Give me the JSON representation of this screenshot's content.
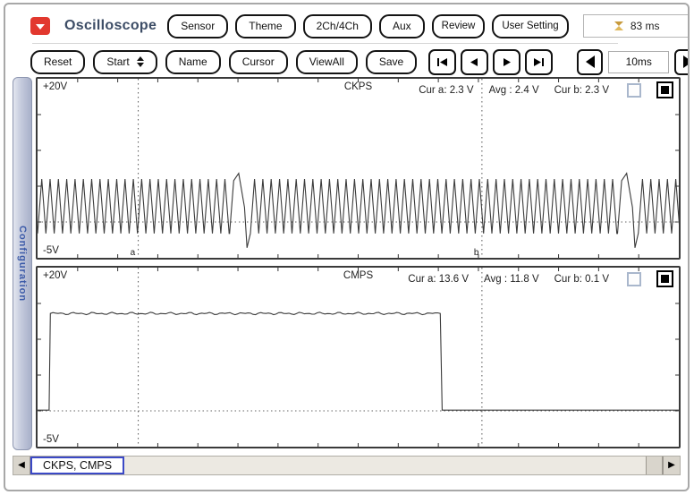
{
  "window": {
    "title": "Oscilloscope"
  },
  "toolbar_top": {
    "buttons": [
      "Sensor",
      "Theme",
      "2Ch/4Ch",
      "Aux",
      "Review",
      "User Setting"
    ],
    "timing_value": "83 ms"
  },
  "toolbar_main": {
    "reset": "Reset",
    "start": "Start",
    "name": "Name",
    "cursor": "Cursor",
    "view_all": "ViewAll",
    "save": "Save",
    "time_base": "10ms"
  },
  "sidebar": {
    "label": "Configuration"
  },
  "status_bar": {
    "channels_label": "CKPS, CMPS"
  },
  "colors": {
    "accent_red": "#e2382e",
    "sidebar_text": "#3b5aa8",
    "status_label_border": "#3b49c6",
    "timing_icon_gold": "#c79a3c",
    "waveform": "#3b3b3b"
  },
  "chart_data": [
    {
      "type": "line",
      "title": "CKPS",
      "y_max_label": "+20V",
      "y_min_label": "-5V",
      "ylim": [
        -5,
        20
      ],
      "baseline_v": 0,
      "cursor_a_frac": 0.157,
      "cursor_b_frac": 0.693,
      "cursor_labels": [
        "a",
        "b"
      ],
      "measurements": {
        "cur_a": "Cur a: 2.3 V",
        "avg": "Avg : 2.4 V",
        "cur_b": "Cur b: 2.3 V"
      },
      "waveform": {
        "kind": "crank_teeth",
        "teeth": 77,
        "high_v": 6.0,
        "low_v": -1.6,
        "gap_centers": [
          0.315,
          0.92
        ],
        "gap_peak_v": 6.8,
        "gap_dip_v": -3.6
      }
    },
    {
      "type": "line",
      "title": "CMPS",
      "y_max_label": "+20V",
      "y_min_label": "-5V",
      "ylim": [
        -5,
        20
      ],
      "baseline_v": 0,
      "cursor_a_frac": 0.157,
      "cursor_b_frac": 0.693,
      "measurements": {
        "cur_a": "Cur a: 13.6 V",
        "avg": "Avg : 11.8 V",
        "cur_b": "Cur b: 0.1 V"
      },
      "waveform": {
        "kind": "segments",
        "points": [
          [
            0,
            0.1
          ],
          [
            0.018,
            0.1
          ],
          [
            0.02,
            13.6
          ],
          [
            0.628,
            13.6
          ],
          [
            0.631,
            0.1
          ],
          [
            1,
            0.1
          ]
        ],
        "noise_v": 0.18,
        "noise_above_v": 5
      }
    }
  ]
}
